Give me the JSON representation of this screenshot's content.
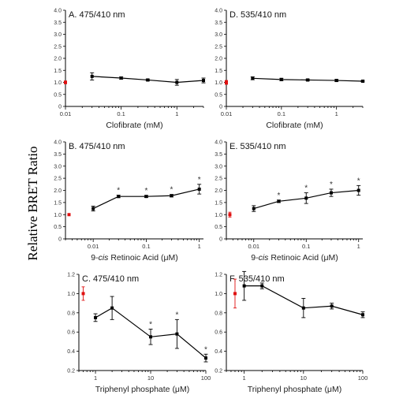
{
  "figure": {
    "ylabel": "Relative BRET Ratio",
    "colors": {
      "series": "#000000",
      "control": "#e01010"
    }
  },
  "chart_data": [
    {
      "id": "A",
      "type": "line",
      "title": "A. 475/410 nm",
      "xlabel": "Clofibrate (mM)",
      "xlabel_italic_prefix": "",
      "xscale": "log",
      "xlim": [
        0.01,
        3
      ],
      "xticks": [
        {
          "v": 0.01,
          "label": "0.01"
        },
        {
          "v": 0.1,
          "label": "0.1"
        },
        {
          "v": 1,
          "label": "1"
        }
      ],
      "ylim": [
        0,
        4
      ],
      "yticks": [
        {
          "v": 0,
          "label": "0"
        },
        {
          "v": 0.5,
          "label": "0.5"
        },
        {
          "v": 1,
          "label": "1.0"
        },
        {
          "v": 1.5,
          "label": "1.5"
        },
        {
          "v": 2,
          "label": "2.0"
        },
        {
          "v": 2.5,
          "label": "2.5"
        },
        {
          "v": 3,
          "label": "3.0"
        },
        {
          "v": 3.5,
          "label": "3.5"
        },
        {
          "v": 4,
          "label": "4.0"
        }
      ],
      "control": {
        "x": 0.01,
        "y": 1.0,
        "err": 0.06
      },
      "series": [
        {
          "x": [
            0.03,
            0.1,
            0.3,
            1,
            3
          ],
          "y": [
            1.25,
            1.18,
            1.1,
            1.0,
            1.08
          ],
          "err": [
            0.15,
            0.05,
            0.04,
            0.12,
            0.1
          ],
          "sig": [
            false,
            false,
            false,
            false,
            false
          ]
        }
      ]
    },
    {
      "id": "D",
      "type": "line",
      "title": "D. 535/410 nm",
      "xlabel": "Clofibrate (mM)",
      "xlabel_italic_prefix": "",
      "xscale": "log",
      "xlim": [
        0.01,
        3
      ],
      "xticks": [
        {
          "v": 0.01,
          "label": "0.01"
        },
        {
          "v": 0.1,
          "label": "0.1"
        },
        {
          "v": 1,
          "label": "1"
        }
      ],
      "ylim": [
        0,
        4
      ],
      "yticks": [
        {
          "v": 0,
          "label": "0"
        },
        {
          "v": 0.5,
          "label": "0.5"
        },
        {
          "v": 1,
          "label": "1.0"
        },
        {
          "v": 1.5,
          "label": "1.5"
        },
        {
          "v": 2,
          "label": "2.0"
        },
        {
          "v": 2.5,
          "label": "2.5"
        },
        {
          "v": 3,
          "label": "3.0"
        },
        {
          "v": 3.5,
          "label": "3.5"
        },
        {
          "v": 4,
          "label": "4.0"
        }
      ],
      "control": {
        "x": 0.01,
        "y": 1.0,
        "err": 0.08
      },
      "series": [
        {
          "x": [
            0.03,
            0.1,
            0.3,
            1,
            3
          ],
          "y": [
            1.17,
            1.12,
            1.1,
            1.08,
            1.05
          ],
          "err": [
            0.06,
            0.05,
            0.04,
            0.04,
            0.03
          ],
          "sig": [
            false,
            false,
            false,
            false,
            false
          ]
        }
      ]
    },
    {
      "id": "B",
      "type": "line",
      "title": "B. 475/410 nm",
      "xlabel": " Retinoic Acid (μM)",
      "xlabel_prefix": "9-",
      "xlabel_italic_prefix": "cis",
      "xscale": "log",
      "xlim": [
        0.003,
        1.2
      ],
      "xticks": [
        {
          "v": 0.01,
          "label": "0.01"
        },
        {
          "v": 0.1,
          "label": "0.1"
        },
        {
          "v": 1,
          "label": "1"
        }
      ],
      "ylim": [
        0,
        4
      ],
      "yticks": [
        {
          "v": 0,
          "label": "0"
        },
        {
          "v": 0.5,
          "label": "0.5"
        },
        {
          "v": 1,
          "label": "1.0"
        },
        {
          "v": 1.5,
          "label": "1.5"
        },
        {
          "v": 2,
          "label": "2.0"
        },
        {
          "v": 2.5,
          "label": "2.5"
        },
        {
          "v": 3,
          "label": "3.0"
        },
        {
          "v": 3.5,
          "label": "3.5"
        },
        {
          "v": 4,
          "label": "4.0"
        }
      ],
      "control": {
        "x": 0.0035,
        "y": 1.0,
        "err": 0.03
      },
      "series": [
        {
          "x": [
            0.01,
            0.03,
            0.1,
            0.3,
            1
          ],
          "y": [
            1.25,
            1.75,
            1.75,
            1.78,
            2.05
          ],
          "err": [
            0.1,
            0.05,
            0.04,
            0.05,
            0.2
          ],
          "sig": [
            false,
            true,
            true,
            true,
            true
          ]
        }
      ]
    },
    {
      "id": "E",
      "type": "line",
      "title": "E. 535/410 nm",
      "xlabel": " Retinoic Acid (μM)",
      "xlabel_prefix": "9-",
      "xlabel_italic_prefix": "cis",
      "xscale": "log",
      "xlim": [
        0.003,
        1.2
      ],
      "xticks": [
        {
          "v": 0.01,
          "label": "0.01"
        },
        {
          "v": 0.1,
          "label": "0.1"
        },
        {
          "v": 1,
          "label": "1"
        }
      ],
      "ylim": [
        0,
        4
      ],
      "yticks": [
        {
          "v": 0,
          "label": "0"
        },
        {
          "v": 0.5,
          "label": "0.5"
        },
        {
          "v": 1,
          "label": "1.0"
        },
        {
          "v": 1.5,
          "label": "1.5"
        },
        {
          "v": 2,
          "label": "2.0"
        },
        {
          "v": 2.5,
          "label": "2.5"
        },
        {
          "v": 3,
          "label": "3.0"
        },
        {
          "v": 3.5,
          "label": "3.5"
        },
        {
          "v": 4,
          "label": "4.0"
        }
      ],
      "control": {
        "x": 0.0035,
        "y": 1.0,
        "err": 0.1
      },
      "series": [
        {
          "x": [
            0.01,
            0.03,
            0.1,
            0.3,
            1
          ],
          "y": [
            1.25,
            1.55,
            1.68,
            1.9,
            2.0
          ],
          "err": [
            0.12,
            0.05,
            0.22,
            0.15,
            0.2
          ],
          "sig": [
            false,
            true,
            true,
            true,
            true
          ]
        }
      ]
    },
    {
      "id": "C",
      "type": "line",
      "title": "C. 475/410 nm",
      "xlabel": "Triphenyl phosphate (μM)",
      "xlabel_italic_prefix": "",
      "xscale": "log",
      "xlim": [
        0.5,
        100
      ],
      "xticks": [
        {
          "v": 1,
          "label": "1"
        },
        {
          "v": 10,
          "label": "10"
        },
        {
          "v": 100,
          "label": "100"
        }
      ],
      "ylim": [
        0.2,
        1.2
      ],
      "yticks": [
        {
          "v": 0.2,
          "label": "0.2"
        },
        {
          "v": 0.4,
          "label": "0.4"
        },
        {
          "v": 0.6,
          "label": "0.6"
        },
        {
          "v": 0.8,
          "label": "0.8"
        },
        {
          "v": 1.0,
          "label": "1.0"
        },
        {
          "v": 1.2,
          "label": "1.2"
        }
      ],
      "control": {
        "x": 0.6,
        "y": 1.0,
        "err": 0.07
      },
      "series": [
        {
          "x": [
            1,
            2,
            10,
            30,
            100
          ],
          "y": [
            0.75,
            0.85,
            0.55,
            0.58,
            0.33
          ],
          "err": [
            0.04,
            0.12,
            0.08,
            0.15,
            0.04
          ],
          "sig": [
            false,
            false,
            true,
            true,
            true
          ]
        }
      ]
    },
    {
      "id": "F",
      "type": "line",
      "title": "F. 535/410 nm",
      "xlabel": "Triphenyl phosphate (μM)",
      "xlabel_italic_prefix": "",
      "xscale": "log",
      "xlim": [
        0.5,
        100
      ],
      "xticks": [
        {
          "v": 1,
          "label": "1"
        },
        {
          "v": 10,
          "label": "10"
        },
        {
          "v": 100,
          "label": "100"
        }
      ],
      "ylim": [
        0.2,
        1.2
      ],
      "yticks": [
        {
          "v": 0.2,
          "label": "0.2"
        },
        {
          "v": 0.4,
          "label": "0.4"
        },
        {
          "v": 0.6,
          "label": "0.6"
        },
        {
          "v": 0.8,
          "label": "0.8"
        },
        {
          "v": 1.0,
          "label": "1.0"
        },
        {
          "v": 1.2,
          "label": "1.2"
        }
      ],
      "control": {
        "x": 0.7,
        "y": 1.0,
        "err": 0.15
      },
      "series": [
        {
          "x": [
            1,
            2,
            10,
            30,
            100
          ],
          "y": [
            1.08,
            1.08,
            0.85,
            0.87,
            0.78
          ],
          "err": [
            0.15,
            0.03,
            0.1,
            0.03,
            0.03
          ],
          "sig": [
            false,
            false,
            false,
            false,
            false
          ]
        }
      ]
    }
  ]
}
